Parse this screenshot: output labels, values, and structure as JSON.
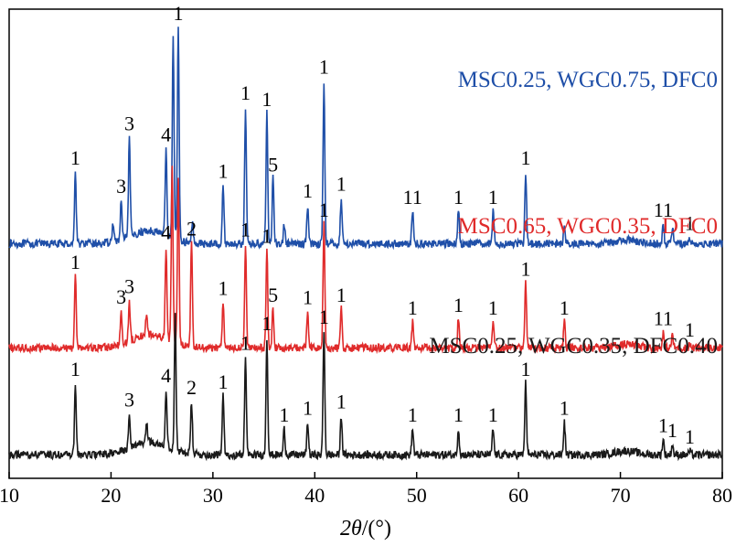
{
  "chart_data": {
    "type": "line",
    "xlabel_parts": {
      "var": "2θ",
      "unit": "/(°)"
    },
    "ylabel": "",
    "xlim": [
      10,
      80
    ],
    "xticks": [
      10,
      20,
      30,
      40,
      50,
      60,
      70,
      80
    ],
    "xtick_labels": [
      "10",
      "20",
      "30",
      "40",
      "50",
      "60",
      "70",
      "80"
    ],
    "yticks_shown": false,
    "series": [
      {
        "name": "MSC0.25, WGC0.75, DFC0",
        "color": "#1f4fa8",
        "baseline": 0.8,
        "noise": 0.06,
        "peaks": [
          {
            "x": 16.5,
            "h": 0.55,
            "label": "1"
          },
          {
            "x": 20.2,
            "h": 0.15,
            "label": ""
          },
          {
            "x": 21.0,
            "h": 0.3,
            "label": "3"
          },
          {
            "x": 21.8,
            "h": 0.75,
            "label": "3"
          },
          {
            "x": 25.4,
            "h": 0.65,
            "label": "4"
          },
          {
            "x": 26.1,
            "h": 1.55,
            "label": ""
          },
          {
            "x": 26.6,
            "h": 1.65,
            "label": "1"
          },
          {
            "x": 28.0,
            "h": 0.15,
            "label": ""
          },
          {
            "x": 31.0,
            "h": 0.45,
            "label": "1"
          },
          {
            "x": 33.2,
            "h": 1.05,
            "label": "1"
          },
          {
            "x": 35.3,
            "h": 1.0,
            "label": "1"
          },
          {
            "x": 35.9,
            "h": 0.5,
            "label": "5"
          },
          {
            "x": 37.0,
            "h": 0.15,
            "label": ""
          },
          {
            "x": 39.3,
            "h": 0.3,
            "label": "1"
          },
          {
            "x": 40.9,
            "h": 1.25,
            "label": "1"
          },
          {
            "x": 42.6,
            "h": 0.35,
            "label": "1"
          },
          {
            "x": 49.6,
            "h": 0.25,
            "label": "11"
          },
          {
            "x": 54.1,
            "h": 0.25,
            "label": "1"
          },
          {
            "x": 57.5,
            "h": 0.25,
            "label": "1"
          },
          {
            "x": 60.7,
            "h": 0.55,
            "label": "1"
          },
          {
            "x": 64.5,
            "h": 0.15,
            "label": ""
          },
          {
            "x": 74.2,
            "h": 0.15,
            "label": "11"
          },
          {
            "x": 75.1,
            "h": 0.12,
            "label": ""
          },
          {
            "x": 76.8,
            "h": 0.05,
            "label": "1"
          }
        ]
      },
      {
        "name": "MSC0.65, WGC0.35, DFC0",
        "color": "#e02b2b",
        "baseline": 0.0,
        "noise": 0.06,
        "peaks": [
          {
            "x": 16.5,
            "h": 0.55,
            "label": "1"
          },
          {
            "x": 21.0,
            "h": 0.25,
            "label": "3"
          },
          {
            "x": 21.8,
            "h": 0.3,
            "label": "3"
          },
          {
            "x": 23.5,
            "h": 0.18,
            "label": ""
          },
          {
            "x": 25.4,
            "h": 0.7,
            "label": "4"
          },
          {
            "x": 26.0,
            "h": 1.35,
            "label": ""
          },
          {
            "x": 26.6,
            "h": 1.3,
            "label": ""
          },
          {
            "x": 27.9,
            "h": 0.8,
            "label": "2"
          },
          {
            "x": 31.0,
            "h": 0.35,
            "label": "1"
          },
          {
            "x": 33.2,
            "h": 0.8,
            "label": "1"
          },
          {
            "x": 35.3,
            "h": 0.75,
            "label": "1"
          },
          {
            "x": 35.9,
            "h": 0.3,
            "label": "5"
          },
          {
            "x": 39.3,
            "h": 0.28,
            "label": "1"
          },
          {
            "x": 40.9,
            "h": 0.95,
            "label": "1"
          },
          {
            "x": 42.6,
            "h": 0.3,
            "label": "1"
          },
          {
            "x": 49.6,
            "h": 0.2,
            "label": "1"
          },
          {
            "x": 54.1,
            "h": 0.22,
            "label": "1"
          },
          {
            "x": 57.5,
            "h": 0.2,
            "label": "1"
          },
          {
            "x": 60.7,
            "h": 0.5,
            "label": "1"
          },
          {
            "x": 64.5,
            "h": 0.2,
            "label": "1"
          },
          {
            "x": 74.2,
            "h": 0.12,
            "label": "11"
          },
          {
            "x": 75.1,
            "h": 0.1,
            "label": ""
          },
          {
            "x": 76.8,
            "h": 0.03,
            "label": "1"
          }
        ]
      },
      {
        "name": "MSC0.25, WGC0.35, DFC0.40",
        "color": "#1a1a1a",
        "baseline": -0.82,
        "noise": 0.06,
        "peaks": [
          {
            "x": 16.5,
            "h": 0.55,
            "label": "1"
          },
          {
            "x": 21.8,
            "h": 0.25,
            "label": "3"
          },
          {
            "x": 23.5,
            "h": 0.15,
            "label": ""
          },
          {
            "x": 25.4,
            "h": 0.42,
            "label": "4"
          },
          {
            "x": 26.3,
            "h": 1.05,
            "label": ""
          },
          {
            "x": 27.9,
            "h": 0.4,
            "label": "2"
          },
          {
            "x": 31.0,
            "h": 0.45,
            "label": "1"
          },
          {
            "x": 33.2,
            "h": 0.75,
            "label": "1"
          },
          {
            "x": 35.3,
            "h": 0.9,
            "label": "1"
          },
          {
            "x": 37.0,
            "h": 0.2,
            "label": "1"
          },
          {
            "x": 39.3,
            "h": 0.25,
            "label": "1"
          },
          {
            "x": 40.9,
            "h": 0.95,
            "label": "1"
          },
          {
            "x": 42.6,
            "h": 0.3,
            "label": "1"
          },
          {
            "x": 49.6,
            "h": 0.2,
            "label": "1"
          },
          {
            "x": 54.1,
            "h": 0.2,
            "label": "1"
          },
          {
            "x": 57.5,
            "h": 0.2,
            "label": "1"
          },
          {
            "x": 60.7,
            "h": 0.55,
            "label": "1"
          },
          {
            "x": 64.5,
            "h": 0.25,
            "label": "1"
          },
          {
            "x": 74.2,
            "h": 0.12,
            "label": "1"
          },
          {
            "x": 75.1,
            "h": 0.08,
            "label": "1"
          },
          {
            "x": 76.8,
            "h": 0.03,
            "label": "1"
          }
        ]
      }
    ]
  }
}
